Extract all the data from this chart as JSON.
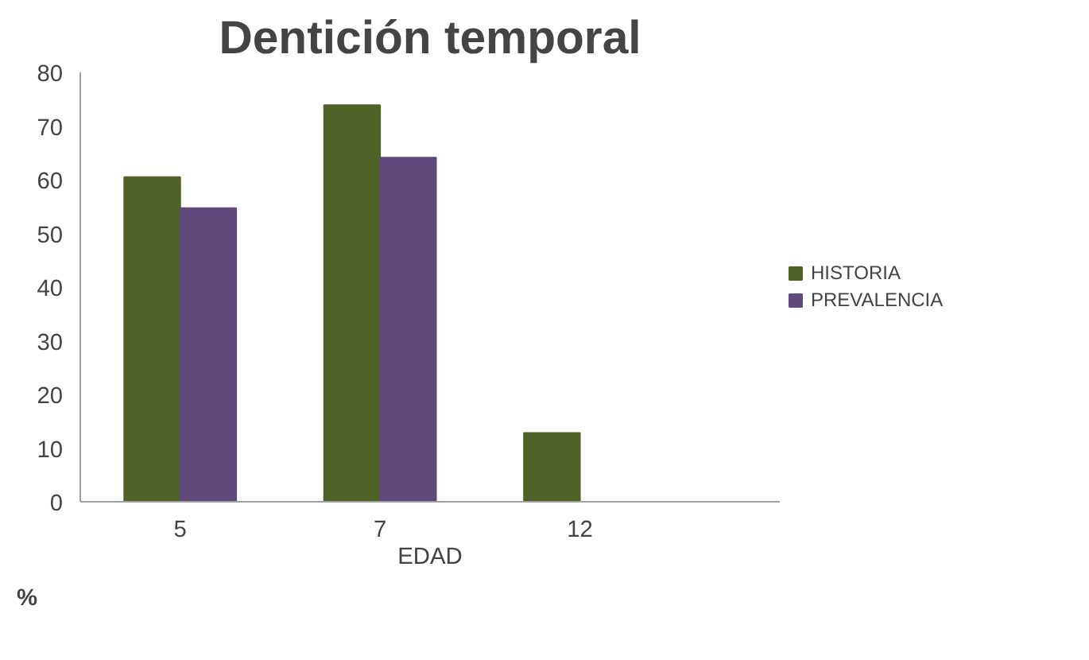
{
  "chart_data": {
    "type": "bar",
    "title": "Dentición temporal",
    "xlabel": "EDAD",
    "ylabel": "%",
    "categories": [
      "5",
      "7",
      "12"
    ],
    "series": [
      {
        "name": "HISTORIA",
        "color": "#4f6228",
        "values": [
          60.5,
          73.9,
          12.8
        ]
      },
      {
        "name": "PREVALENCIA",
        "color": "#604a7b",
        "values": [
          54.7,
          64.1,
          null
        ]
      }
    ],
    "ylim": [
      0,
      80
    ],
    "yticks": [
      0,
      10,
      20,
      30,
      40,
      50,
      60,
      70,
      80
    ],
    "grid": false,
    "legend": "right"
  }
}
